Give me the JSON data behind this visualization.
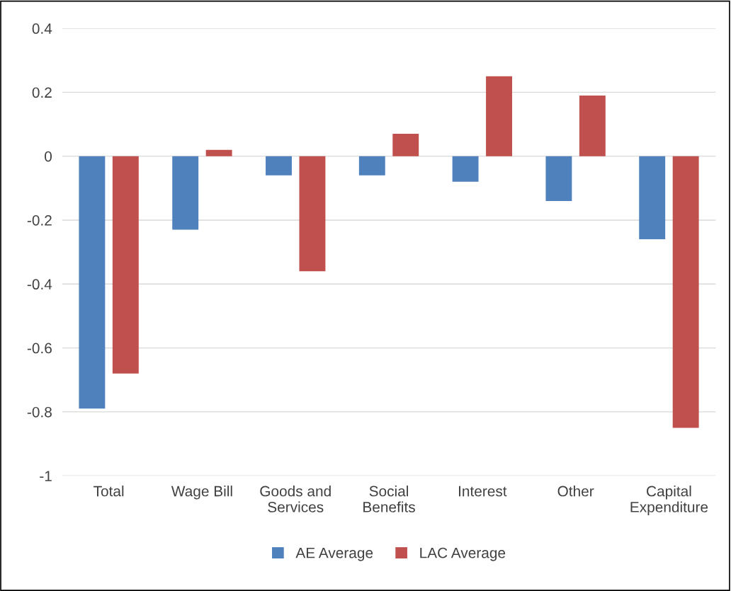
{
  "chart_data": {
    "type": "bar",
    "categories": [
      "Total",
      "Wage Bill",
      "Goods and\nServices",
      "Social\nBenefits",
      "Interest",
      "Other",
      "Capital\nExpenditure"
    ],
    "series": [
      {
        "name": "AE Average",
        "color": "#4f81bd",
        "values": [
          -0.79,
          -0.23,
          -0.06,
          -0.06,
          -0.08,
          -0.14,
          -0.26
        ]
      },
      {
        "name": "LAC Average",
        "color": "#c0504d",
        "values": [
          -0.68,
          0.02,
          -0.36,
          0.07,
          0.25,
          0.19,
          -0.85
        ]
      }
    ],
    "ylim": [
      -1,
      0.4
    ],
    "yticks": [
      -1,
      -0.8,
      -0.6,
      -0.4,
      -0.2,
      0,
      0.2,
      0.4
    ],
    "grid": "y",
    "legend": "bottom"
  }
}
